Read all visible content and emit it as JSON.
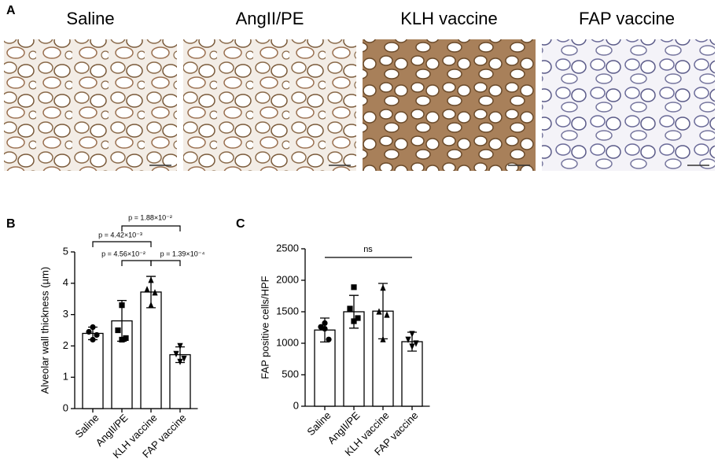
{
  "panel_labels": [
    "A",
    "B",
    "C"
  ],
  "images": [
    {
      "label": "Saline"
    },
    {
      "label": "AngII/PE"
    },
    {
      "label": "KLH vaccine"
    },
    {
      "label": "FAP vaccine"
    }
  ],
  "chart_data": [
    {
      "type": "bar",
      "y_label": "Alveolar wall thickness (µm)",
      "categories": [
        "Saline",
        "AngII/PE",
        "KLH vaccine",
        "FAP vaccine"
      ],
      "values": [
        2.4,
        2.8,
        3.72,
        1.72
      ],
      "errors": [
        0.2,
        0.65,
        0.5,
        0.25
      ],
      "points": [
        [
          2.6,
          2.45,
          2.35,
          2.2
        ],
        [
          3.3,
          2.5,
          2.25,
          2.2
        ],
        [
          4.1,
          3.8,
          3.7,
          3.3
        ],
        [
          2.0,
          1.75,
          1.6,
          1.5
        ]
      ],
      "ylim": [
        0,
        5
      ],
      "yticks": [
        0,
        1,
        2,
        3,
        4,
        5
      ],
      "color": "#ffffff",
      "annotations": [
        "p = 1.88×10⁻²",
        "p = 4.42×10⁻³",
        "p = 4.56×10⁻²",
        "p = 1.39×10⁻⁴"
      ]
    },
    {
      "type": "bar",
      "y_label": "FAP positive cells/HPF",
      "categories": [
        "Saline",
        "AngII/PE",
        "KLH vaccine",
        "FAP vaccine"
      ],
      "values": [
        1210,
        1500,
        1510,
        1025
      ],
      "errors": [
        190,
        260,
        440,
        150
      ],
      "points": [
        [
          1320,
          1260,
          1060,
          1230
        ],
        [
          1890,
          1550,
          1400,
          1350
        ],
        [
          1880,
          1500,
          1450,
          1060
        ],
        [
          1150,
          1060,
          1000,
          950
        ]
      ],
      "ylim": [
        0,
        2500
      ],
      "yticks": [
        0,
        500,
        1000,
        1500,
        2000,
        2500
      ],
      "color": "#ffffff",
      "annotations": [
        "ns"
      ]
    }
  ]
}
